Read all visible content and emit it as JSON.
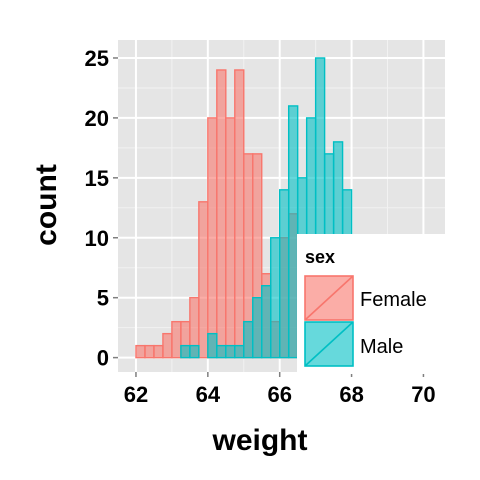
{
  "chart_data": {
    "type": "bar",
    "xlabel": "weight",
    "ylabel": "count",
    "xlim": [
      61.5,
      70.6
    ],
    "ylim": [
      -1.2,
      26.5
    ],
    "xticks": [
      62,
      64,
      66,
      68,
      70
    ],
    "yticks": [
      0,
      5,
      10,
      15,
      20,
      25
    ],
    "grid": true,
    "bin_width": 0.25,
    "legend": {
      "title": "sex",
      "position": "right-inside-bottom"
    },
    "series": [
      {
        "name": "Female",
        "fill": "#F8766D",
        "bins": [
          {
            "x0": 61.5,
            "count": 0
          },
          {
            "x0": 61.75,
            "count": 0
          },
          {
            "x0": 62.0,
            "count": 1
          },
          {
            "x0": 62.25,
            "count": 1
          },
          {
            "x0": 62.5,
            "count": 1
          },
          {
            "x0": 62.75,
            "count": 2
          },
          {
            "x0": 63.0,
            "count": 3
          },
          {
            "x0": 63.25,
            "count": 3
          },
          {
            "x0": 63.5,
            "count": 5
          },
          {
            "x0": 63.75,
            "count": 13
          },
          {
            "x0": 64.0,
            "count": 20
          },
          {
            "x0": 64.25,
            "count": 24
          },
          {
            "x0": 64.5,
            "count": 20
          },
          {
            "x0": 64.75,
            "count": 24
          },
          {
            "x0": 65.0,
            "count": 17
          },
          {
            "x0": 65.25,
            "count": 17
          },
          {
            "x0": 65.5,
            "count": 7
          },
          {
            "x0": 65.75,
            "count": 3
          },
          {
            "x0": 66.0,
            "count": 10
          },
          {
            "x0": 66.25,
            "count": 12
          },
          {
            "x0": 66.5,
            "count": 2
          },
          {
            "x0": 66.75,
            "count": 0
          },
          {
            "x0": 67.0,
            "count": 1
          }
        ]
      },
      {
        "name": "Male",
        "fill": "#00BFC4",
        "bins": [
          {
            "x0": 61.5,
            "count": 0
          },
          {
            "x0": 61.75,
            "count": 0
          },
          {
            "x0": 62.0,
            "count": 0
          },
          {
            "x0": 62.25,
            "count": 0
          },
          {
            "x0": 62.5,
            "count": 0
          },
          {
            "x0": 62.75,
            "count": 0
          },
          {
            "x0": 63.0,
            "count": 0
          },
          {
            "x0": 63.25,
            "count": 1
          },
          {
            "x0": 63.5,
            "count": 1
          },
          {
            "x0": 63.75,
            "count": 0
          },
          {
            "x0": 64.0,
            "count": 2
          },
          {
            "x0": 64.25,
            "count": 1
          },
          {
            "x0": 64.5,
            "count": 1
          },
          {
            "x0": 64.75,
            "count": 1
          },
          {
            "x0": 65.0,
            "count": 3
          },
          {
            "x0": 65.25,
            "count": 5
          },
          {
            "x0": 65.5,
            "count": 6
          },
          {
            "x0": 65.75,
            "count": 10
          },
          {
            "x0": 66.0,
            "count": 14
          },
          {
            "x0": 66.25,
            "count": 21
          },
          {
            "x0": 66.5,
            "count": 15
          },
          {
            "x0": 66.75,
            "count": 20
          },
          {
            "x0": 67.0,
            "count": 25
          },
          {
            "x0": 67.25,
            "count": 17
          },
          {
            "x0": 67.5,
            "count": 18
          },
          {
            "x0": 67.75,
            "count": 14
          },
          {
            "x0": 68.0,
            "count": 10
          }
        ]
      }
    ]
  }
}
